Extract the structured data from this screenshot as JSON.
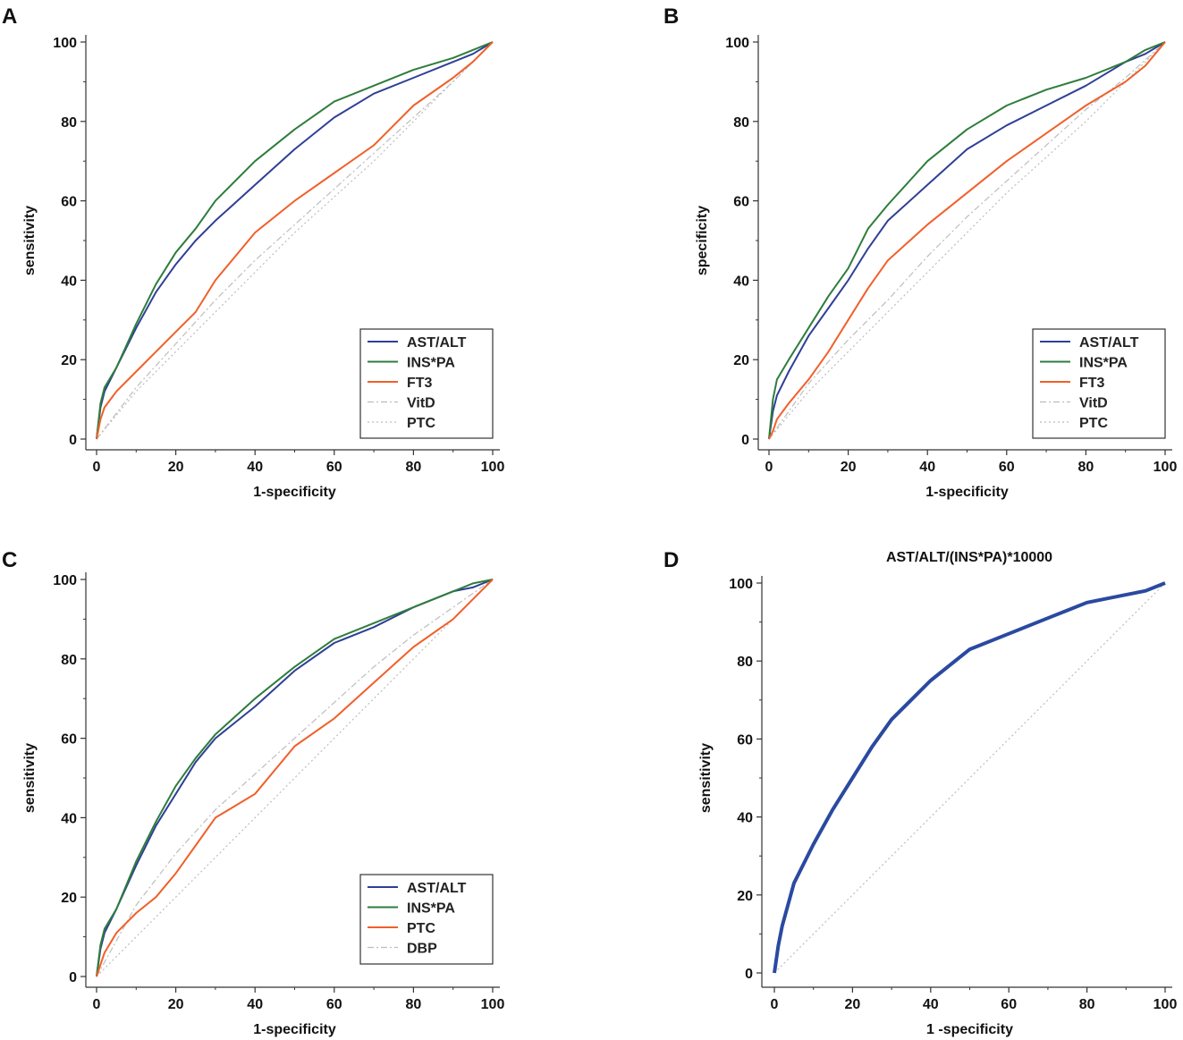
{
  "colors": {
    "ast_alt": "#2f3f96",
    "ins_pa": "#2e7d3c",
    "orange": "#f0602a",
    "gray_dash": "#bdbdbd",
    "blue_thick": "#2a4aa0",
    "axis": "#333333"
  },
  "chart_data": [
    {
      "panel": "A",
      "type": "line",
      "title": "",
      "xlabel": "1-specificity",
      "ylabel": "sensitivity",
      "xlim": [
        0,
        100
      ],
      "ylim": [
        0,
        100
      ],
      "xticks": [
        0,
        20,
        40,
        60,
        80,
        100
      ],
      "yticks": [
        0,
        20,
        40,
        60,
        80,
        100
      ],
      "legend": "bottom-right",
      "series": [
        {
          "name": "AST/ALT",
          "style": "ast_alt",
          "x": [
            0,
            1,
            2,
            5,
            10,
            15,
            20,
            25,
            30,
            40,
            50,
            60,
            70,
            80,
            90,
            95,
            100
          ],
          "y": [
            0,
            8,
            12,
            18,
            28,
            37,
            44,
            50,
            55,
            64,
            73,
            81,
            87,
            91,
            95,
            97,
            100
          ]
        },
        {
          "name": "INS*PA",
          "style": "ins_pa",
          "x": [
            0,
            1,
            2,
            5,
            10,
            15,
            20,
            25,
            30,
            40,
            50,
            60,
            70,
            80,
            90,
            95,
            100
          ],
          "y": [
            0,
            9,
            13,
            18,
            29,
            39,
            47,
            53,
            60,
            70,
            78,
            85,
            89,
            93,
            96,
            98,
            100
          ]
        },
        {
          "name": "FT3",
          "style": "orange",
          "x": [
            0,
            1,
            2,
            5,
            10,
            15,
            20,
            25,
            30,
            40,
            50,
            60,
            70,
            80,
            90,
            95,
            100
          ],
          "y": [
            0,
            5,
            8,
            12,
            17,
            22,
            27,
            32,
            40,
            52,
            60,
            67,
            74,
            84,
            91,
            95,
            100
          ]
        },
        {
          "name": "VitD",
          "style": "gray_dashdot",
          "x": [
            0,
            10,
            20,
            30,
            40,
            50,
            60,
            70,
            80,
            90,
            100
          ],
          "y": [
            0,
            13,
            24,
            35,
            45,
            54,
            63,
            72,
            81,
            90,
            100
          ]
        },
        {
          "name": "PTC",
          "style": "gray_dot",
          "x": [
            0,
            10,
            20,
            30,
            40,
            50,
            60,
            70,
            80,
            90,
            100
          ],
          "y": [
            0,
            12,
            22,
            32,
            42,
            52,
            61,
            70,
            80,
            90,
            100
          ]
        }
      ]
    },
    {
      "panel": "B",
      "type": "line",
      "title": "",
      "xlabel": "1-specificity",
      "ylabel": "specificity",
      "xlim": [
        0,
        100
      ],
      "ylim": [
        0,
        100
      ],
      "xticks": [
        0,
        20,
        40,
        60,
        80,
        100
      ],
      "yticks": [
        0,
        20,
        40,
        60,
        80,
        100
      ],
      "legend": "bottom-right",
      "series": [
        {
          "name": "AST/ALT",
          "style": "ast_alt",
          "x": [
            0,
            1,
            2,
            5,
            10,
            15,
            20,
            25,
            30,
            40,
            50,
            60,
            70,
            80,
            90,
            95,
            100
          ],
          "y": [
            0,
            7,
            11,
            17,
            26,
            33,
            40,
            48,
            55,
            64,
            73,
            79,
            84,
            89,
            95,
            97,
            100
          ]
        },
        {
          "name": "INS*PA",
          "style": "ins_pa",
          "x": [
            0,
            1,
            2,
            5,
            10,
            15,
            20,
            25,
            30,
            40,
            50,
            60,
            70,
            80,
            90,
            95,
            100
          ],
          "y": [
            0,
            10,
            15,
            20,
            28,
            36,
            43,
            53,
            59,
            70,
            78,
            84,
            88,
            91,
            95,
            98,
            100
          ]
        },
        {
          "name": "FT3",
          "style": "orange",
          "x": [
            0,
            1,
            2,
            5,
            10,
            15,
            20,
            25,
            30,
            40,
            50,
            60,
            70,
            80,
            90,
            95,
            100
          ],
          "y": [
            0,
            2,
            5,
            9,
            15,
            22,
            30,
            38,
            45,
            54,
            62,
            70,
            77,
            84,
            90,
            94,
            100
          ]
        },
        {
          "name": "VitD",
          "style": "gray_dashdot",
          "x": [
            0,
            10,
            20,
            30,
            40,
            50,
            60,
            70,
            80,
            90,
            100
          ],
          "y": [
            0,
            14,
            25,
            35,
            46,
            56,
            65,
            74,
            83,
            91,
            100
          ]
        },
        {
          "name": "PTC",
          "style": "gray_dot",
          "x": [
            0,
            10,
            20,
            30,
            40,
            50,
            60,
            70,
            80,
            90,
            100
          ],
          "y": [
            0,
            12,
            22,
            32,
            42,
            52,
            62,
            71,
            80,
            90,
            100
          ]
        }
      ]
    },
    {
      "panel": "C",
      "type": "line",
      "title": "",
      "xlabel": "1-specificity",
      "ylabel": "sensitivity",
      "xlim": [
        0,
        100
      ],
      "ylim": [
        0,
        100
      ],
      "xticks": [
        0,
        20,
        40,
        60,
        80,
        100
      ],
      "yticks": [
        0,
        20,
        40,
        60,
        80,
        100
      ],
      "legend": "bottom-right",
      "series": [
        {
          "name": "AST/ALT",
          "style": "ast_alt",
          "x": [
            0,
            1,
            2,
            5,
            10,
            15,
            20,
            25,
            30,
            40,
            50,
            60,
            70,
            80,
            90,
            95,
            100
          ],
          "y": [
            0,
            7,
            11,
            17,
            28,
            38,
            46,
            54,
            60,
            68,
            77,
            84,
            88,
            93,
            97,
            98,
            100
          ]
        },
        {
          "name": "INS*PA",
          "style": "ins_pa",
          "x": [
            0,
            1,
            2,
            5,
            10,
            15,
            20,
            25,
            30,
            40,
            50,
            60,
            70,
            80,
            90,
            95,
            100
          ],
          "y": [
            0,
            8,
            12,
            17,
            29,
            39,
            48,
            55,
            61,
            70,
            78,
            85,
            89,
            93,
            97,
            99,
            100
          ]
        },
        {
          "name": "PTC",
          "style": "orange",
          "x": [
            0,
            1,
            2,
            5,
            10,
            15,
            20,
            25,
            30,
            40,
            50,
            60,
            70,
            80,
            90,
            95,
            100
          ],
          "y": [
            0,
            3,
            6,
            11,
            16,
            20,
            26,
            33,
            40,
            46,
            58,
            65,
            74,
            83,
            90,
            95,
            100
          ]
        },
        {
          "name": "DBP",
          "style": "gray_dashdot",
          "x": [
            0,
            10,
            20,
            30,
            40,
            50,
            60,
            70,
            80,
            90,
            100
          ],
          "y": [
            0,
            18,
            31,
            42,
            51,
            60,
            69,
            78,
            86,
            93,
            100
          ]
        },
        {
          "name": "",
          "style": "gray_dot",
          "x": [
            0,
            100
          ],
          "y": [
            0,
            100
          ]
        }
      ]
    },
    {
      "panel": "D",
      "type": "line",
      "title": "AST/ALT/(INS*PA)*10000",
      "xlabel": "1 -specificity",
      "ylabel": "sensitivity",
      "xlim": [
        0,
        100
      ],
      "ylim": [
        0,
        100
      ],
      "xticks": [
        0,
        20,
        40,
        60,
        80,
        100
      ],
      "yticks": [
        0,
        20,
        40,
        60,
        80,
        100
      ],
      "legend": "none",
      "series": [
        {
          "name": "AST/ALT/(INS*PA)*10000",
          "style": "blue_thick",
          "x": [
            0,
            1,
            2,
            5,
            10,
            15,
            20,
            25,
            30,
            40,
            50,
            60,
            70,
            75,
            80,
            90,
            95,
            100
          ],
          "y": [
            0,
            7,
            12,
            23,
            33,
            42,
            50,
            58,
            65,
            75,
            83,
            87,
            91,
            93,
            95,
            97,
            98,
            100
          ]
        },
        {
          "name": "",
          "style": "gray_dot",
          "x": [
            0,
            100
          ],
          "y": [
            0,
            100
          ]
        }
      ]
    }
  ]
}
